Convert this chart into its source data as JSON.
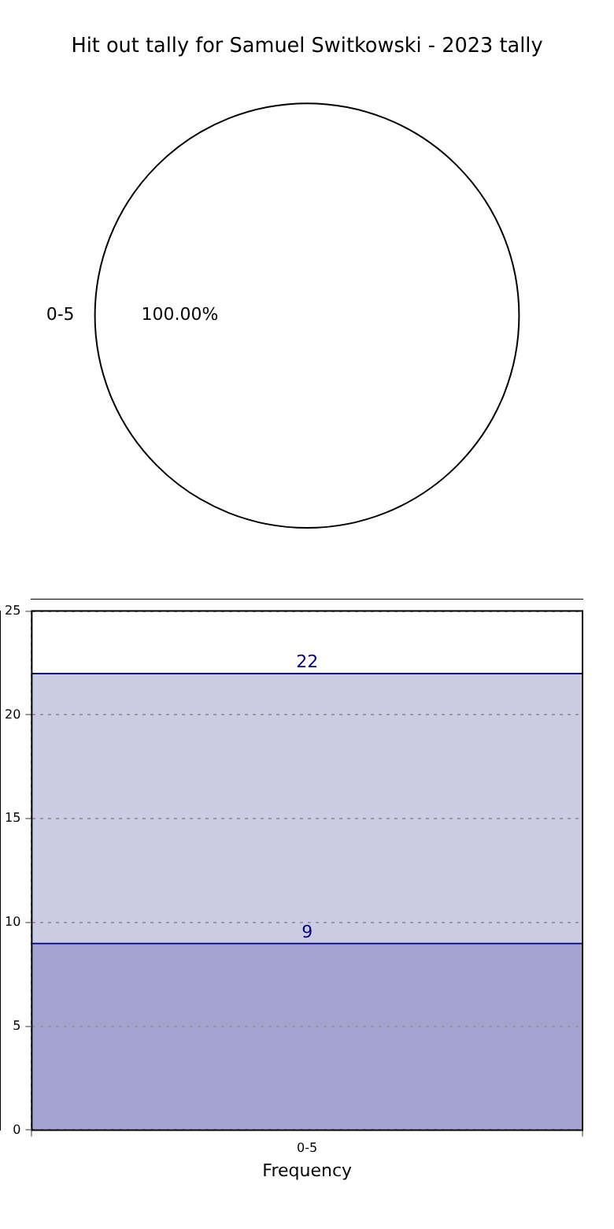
{
  "chart_data": [
    {
      "type": "pie",
      "title": "Hit out tally for Samuel Switkowski - 2023 tally",
      "categories": [
        "0-5"
      ],
      "values": [
        100
      ],
      "colors": [
        "#ffffff"
      ],
      "value_labels": [
        "100.00%"
      ]
    },
    {
      "type": "bar",
      "categories": [
        "0-5"
      ],
      "xlabel": "Frequency",
      "ylim": [
        0,
        25
      ],
      "yticks": [
        0,
        5,
        10,
        15,
        20,
        25
      ],
      "grid": true,
      "stacked": true,
      "totals": [
        "22"
      ],
      "series": [
        {
          "color": "#a3a3cf",
          "values": [
            9
          ],
          "value_labels": [
            "9"
          ]
        },
        {
          "color": "#cbcce4",
          "values": [
            13
          ],
          "value_labels": [
            null
          ]
        }
      ]
    }
  ]
}
